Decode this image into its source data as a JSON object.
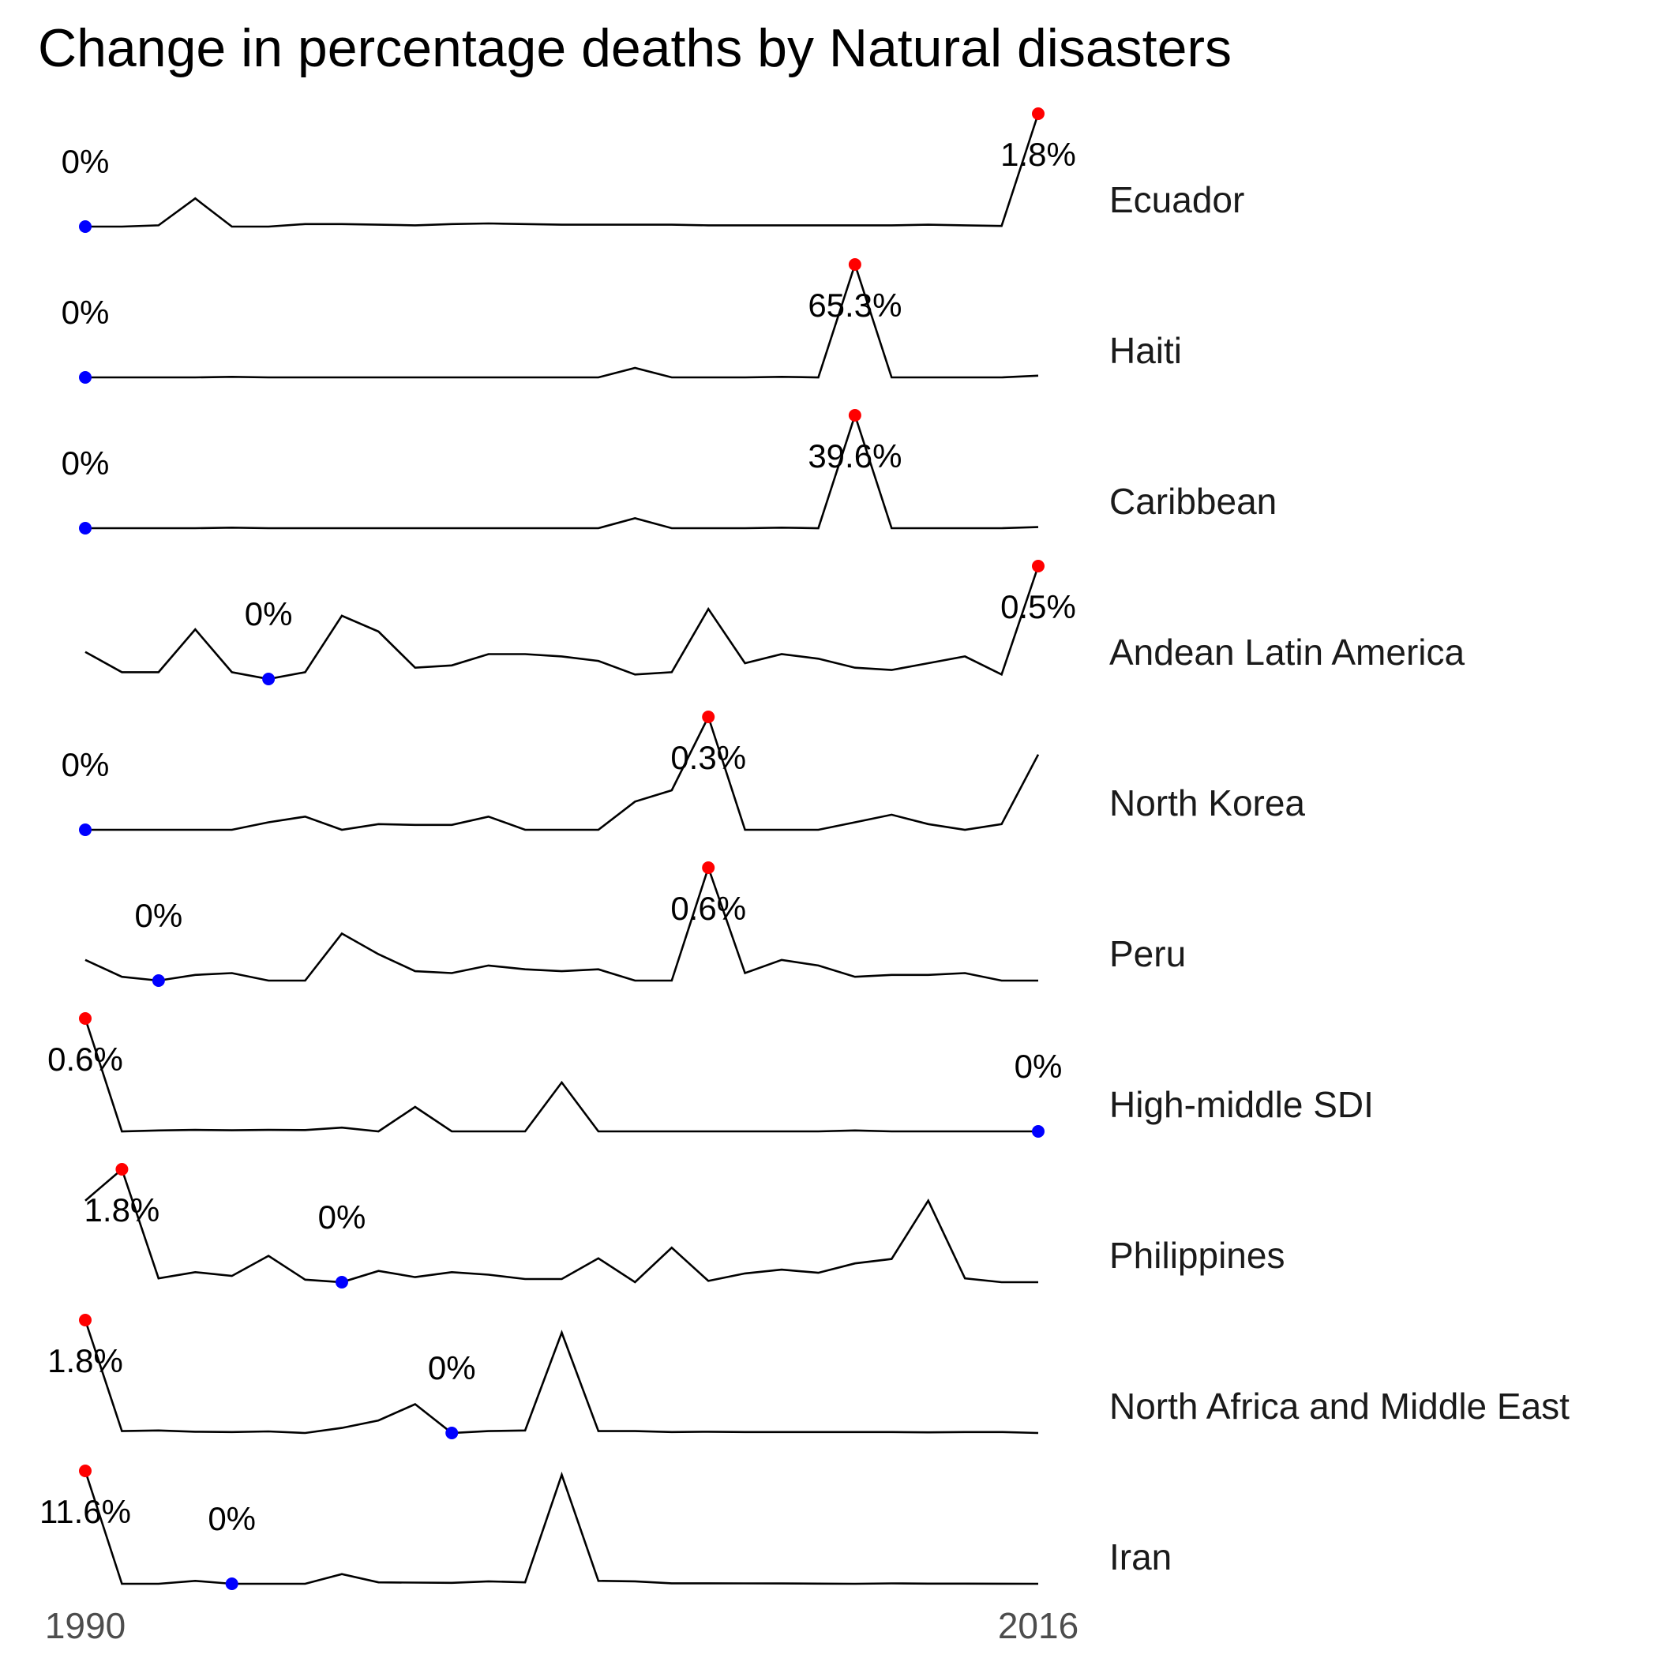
{
  "chart_data": {
    "type": "line",
    "title": "Change in percentage deaths by Natural disasters",
    "x": [
      1990,
      1991,
      1992,
      1993,
      1994,
      1995,
      1996,
      1997,
      1998,
      1999,
      2000,
      2001,
      2002,
      2003,
      2004,
      2005,
      2006,
      2007,
      2008,
      2009,
      2010,
      2011,
      2012,
      2013,
      2014,
      2015,
      2016
    ],
    "x_tick_labels": [
      "1990",
      "2016"
    ],
    "grid": false,
    "legend": "none",
    "colors": {
      "line": "#000000",
      "max_point": "#ff0000",
      "min_point": "#0000ff"
    },
    "series": [
      {
        "name": "Ecuador",
        "values": [
          0.0,
          0.0,
          0.02,
          0.45,
          0.0,
          0.0,
          0.04,
          0.04,
          0.03,
          0.02,
          0.04,
          0.05,
          0.04,
          0.03,
          0.03,
          0.03,
          0.03,
          0.02,
          0.02,
          0.02,
          0.02,
          0.02,
          0.02,
          0.03,
          0.02,
          0.01,
          1.8
        ],
        "max": {
          "year": 2016,
          "label": "1.8%"
        },
        "min": {
          "year": 1990,
          "label": "0%"
        }
      },
      {
        "name": "Haiti",
        "values": [
          0.0,
          0.0,
          0.0,
          0.0,
          0.3,
          0.0,
          0.0,
          0.0,
          0.0,
          0.0,
          0.0,
          0.0,
          0.0,
          0.0,
          0.0,
          5.5,
          0.0,
          0.0,
          0.0,
          0.3,
          0.0,
          65.3,
          0.0,
          0.0,
          0.0,
          0.0,
          1.0
        ],
        "max": {
          "year": 2011,
          "label": "65.3%"
        },
        "min": {
          "year": 1990,
          "label": "0%"
        }
      },
      {
        "name": "Caribbean",
        "values": [
          0.0,
          0.0,
          0.0,
          0.0,
          0.2,
          0.0,
          0.0,
          0.0,
          0.0,
          0.0,
          0.0,
          0.0,
          0.0,
          0.0,
          0.0,
          3.5,
          0.0,
          0.0,
          0.0,
          0.2,
          0.0,
          39.6,
          0.0,
          0.0,
          0.0,
          0.0,
          0.4
        ],
        "max": {
          "year": 2011,
          "label": "39.6%"
        },
        "min": {
          "year": 1990,
          "label": "0%"
        }
      },
      {
        "name": "Andean Latin America",
        "values": [
          0.12,
          0.03,
          0.03,
          0.22,
          0.03,
          0.0,
          0.03,
          0.28,
          0.21,
          0.05,
          0.06,
          0.11,
          0.11,
          0.1,
          0.08,
          0.02,
          0.03,
          0.31,
          0.07,
          0.11,
          0.09,
          0.05,
          0.04,
          0.07,
          0.1,
          0.02,
          0.5
        ],
        "max": {
          "year": 2016,
          "label": "0.5%"
        },
        "min": {
          "year": 1995,
          "label": "0%"
        }
      },
      {
        "name": "North Korea",
        "values": [
          0.0,
          0.0,
          0.0,
          0.0,
          0.0,
          0.02,
          0.035,
          0.0,
          0.015,
          0.013,
          0.013,
          0.035,
          0.0,
          0.0,
          0.0,
          0.075,
          0.105,
          0.3,
          0.0,
          0.0,
          0.0,
          0.02,
          0.04,
          0.015,
          0.0,
          0.015,
          0.2
        ],
        "max": {
          "year": 2007,
          "label": "0.3%"
        },
        "min": {
          "year": 1990,
          "label": "0%"
        }
      },
      {
        "name": "Peru",
        "values": [
          0.11,
          0.02,
          0.0,
          0.03,
          0.04,
          0.0,
          0.0,
          0.25,
          0.14,
          0.05,
          0.04,
          0.08,
          0.06,
          0.05,
          0.06,
          0.0,
          0.0,
          0.6,
          0.04,
          0.11,
          0.08,
          0.02,
          0.03,
          0.03,
          0.04,
          0.0,
          0.0
        ],
        "max": {
          "year": 2007,
          "label": "0.6%"
        },
        "min": {
          "year": 1992,
          "label": "0%"
        }
      },
      {
        "name": "High-middle SDI",
        "values": [
          0.6,
          0.0,
          0.005,
          0.008,
          0.006,
          0.008,
          0.007,
          0.02,
          0.0,
          0.13,
          0.0,
          0.0,
          0.0,
          0.26,
          0.0,
          0.0,
          0.0,
          0.0,
          0.0,
          0.0,
          0.0,
          0.005,
          0.0,
          0.0,
          0.0,
          0.0,
          0.0
        ],
        "max": {
          "year": 1990,
          "label": "0.6%"
        },
        "min": {
          "year": 2016,
          "label": "0%"
        }
      },
      {
        "name": "Philippines",
        "values": [
          1.3,
          1.8,
          0.06,
          0.16,
          0.1,
          0.42,
          0.04,
          0.0,
          0.18,
          0.08,
          0.16,
          0.12,
          0.05,
          0.05,
          0.38,
          0.0,
          0.55,
          0.02,
          0.14,
          0.2,
          0.15,
          0.3,
          0.37,
          1.3,
          0.06,
          0.0,
          0.0
        ],
        "max": {
          "year": 1991,
          "label": "1.8%"
        },
        "min": {
          "year": 1997,
          "label": "0%"
        }
      },
      {
        "name": "North Africa and Middle East",
        "values": [
          1.8,
          0.03,
          0.04,
          0.02,
          0.015,
          0.025,
          0.0,
          0.08,
          0.2,
          0.46,
          0.0,
          0.03,
          0.04,
          1.6,
          0.03,
          0.03,
          0.015,
          0.02,
          0.015,
          0.015,
          0.015,
          0.015,
          0.015,
          0.01,
          0.015,
          0.015,
          0.0
        ],
        "max": {
          "year": 1990,
          "label": "1.8%"
        },
        "min": {
          "year": 2000,
          "label": "0%"
        }
      },
      {
        "name": "Iran",
        "values": [
          11.6,
          0.0,
          0.0,
          0.3,
          0.0,
          0.0,
          0.0,
          1.0,
          0.15,
          0.12,
          0.1,
          0.25,
          0.15,
          11.2,
          0.3,
          0.25,
          0.05,
          0.05,
          0.04,
          0.03,
          0.02,
          0.0,
          0.04,
          0.02,
          0.02,
          0.01,
          0.0
        ],
        "max": {
          "year": 1990,
          "label": "11.6%"
        },
        "min": {
          "year": 1994,
          "label": "0%"
        }
      }
    ]
  }
}
